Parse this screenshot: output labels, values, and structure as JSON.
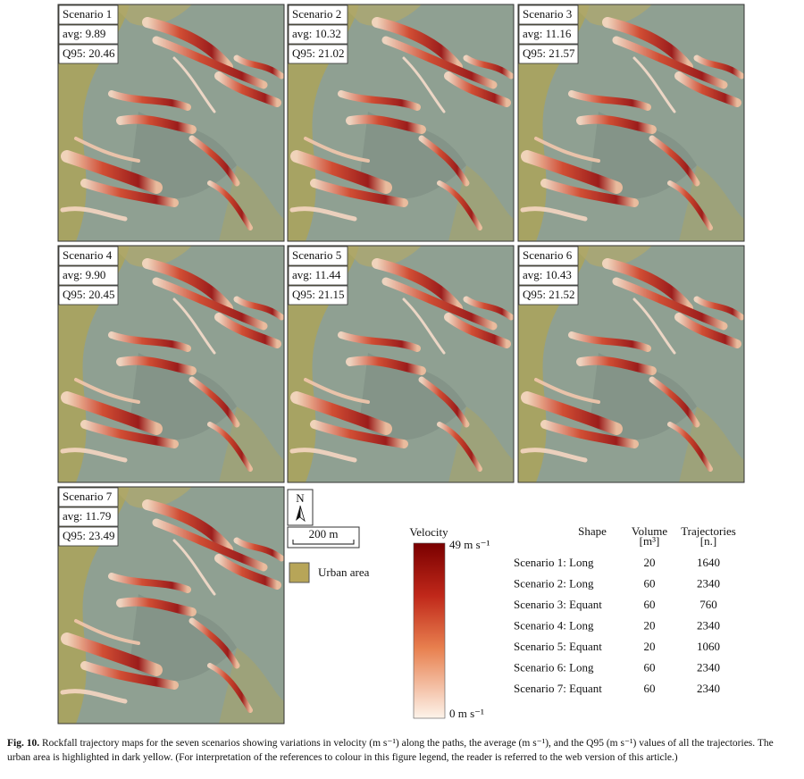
{
  "panels": [
    {
      "title": "Scenario 1",
      "avg": "avg: 9.89",
      "q95": "Q95: 20.46"
    },
    {
      "title": "Scenario 2",
      "avg": "avg: 10.32",
      "q95": "Q95: 21.02"
    },
    {
      "title": "Scenario 3",
      "avg": "avg: 11.16",
      "q95": "Q95: 21.57"
    },
    {
      "title": "Scenario 4",
      "avg": "avg: 9.90",
      "q95": "Q95: 20.45"
    },
    {
      "title": "Scenario 5",
      "avg": "avg: 11.44",
      "q95": "Q95: 21.15"
    },
    {
      "title": "Scenario 6",
      "avg": "avg: 10.43",
      "q95": "Q95: 21.52"
    },
    {
      "title": "Scenario 7",
      "avg": "avg: 11.79",
      "q95": "Q95: 23.49"
    }
  ],
  "legend": {
    "north": "N",
    "scale": "200 m",
    "urban": "Urban area",
    "velocity_title": "Velocity",
    "velocity_max": "49 m s⁻¹",
    "velocity_min": "0 m s⁻¹"
  },
  "table": {
    "headers": [
      [
        "Shape"
      ],
      [
        "Volume",
        "[m³]"
      ],
      [
        "Trajectories",
        "[n.]"
      ]
    ],
    "rows": [
      [
        "Scenario 1: Long",
        20,
        1640
      ],
      [
        "Scenario 2: Long",
        60,
        2340
      ],
      [
        "Scenario 3: Equant",
        60,
        760
      ],
      [
        "Scenario 4: Long",
        20,
        2340
      ],
      [
        "Scenario 5: Equant",
        20,
        1060
      ],
      [
        "Scenario 6: Long",
        60,
        2340
      ],
      [
        "Scenario 7: Equant",
        60,
        2340
      ]
    ]
  },
  "caption": {
    "label": "Fig. 10.",
    "text": "Rockfall trajectory maps for the seven scenarios showing variations in velocity (m s⁻¹) along the paths, the average (m s⁻¹), and the Q95 (m s⁻¹) values of all the trajectories. The urban area is highlighted in dark yellow. (For interpretation of the references to colour in this figure legend, the reader is referred to the web version of this article.)"
  }
}
